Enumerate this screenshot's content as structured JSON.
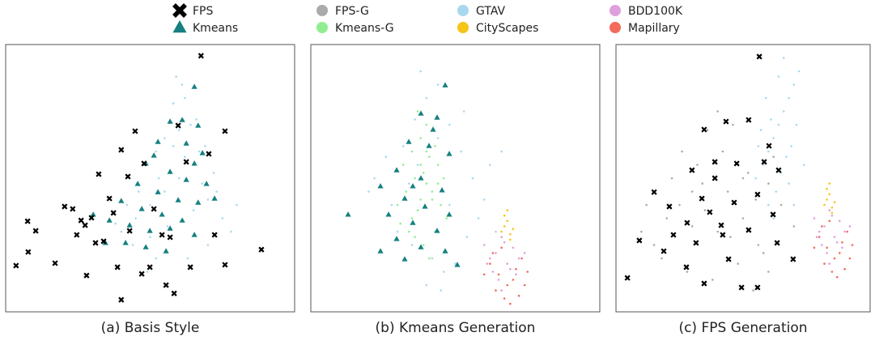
{
  "chart_data": [
    {
      "type": "scatter",
      "xlabel": "(a) Basis Style",
      "xlim": [
        0,
        100
      ],
      "ylim": [
        0,
        100
      ],
      "series": [
        {
          "name": "GTAV",
          "color": "#a8d8f0",
          "marker": "dot",
          "x": [
            40,
            45,
            50,
            55,
            60,
            65,
            70,
            48,
            52,
            58,
            62,
            68,
            72,
            75,
            44,
            50,
            56,
            63,
            70,
            78,
            46,
            53,
            60,
            66,
            58,
            61,
            64,
            55,
            57,
            67,
            42,
            38,
            73,
            80,
            52,
            49,
            62,
            59,
            69,
            65
          ],
          "values": [
            30,
            35,
            40,
            45,
            50,
            38,
            42,
            55,
            60,
            62,
            58,
            48,
            52,
            35,
            25,
            28,
            32,
            20,
            25,
            30,
            45,
            50,
            68,
            72,
            78,
            85,
            70,
            65,
            52,
            60,
            40,
            33,
            45,
            40,
            20,
            15,
            80,
            88,
            62,
            55
          ]
        },
        {
          "name": "Kmeans",
          "color": "#168080",
          "marker": "triangle",
          "x": [
            65.3,
            56.9,
            61.1,
            66.6,
            52.7,
            62.5,
            68.1,
            48.5,
            56.9,
            62.5,
            69.5,
            45.7,
            52.7,
            59.7,
            66.6,
            40,
            47.1,
            54.1,
            61.1,
            35.9,
            42.9,
            49.9,
            56.9,
            65.3,
            34.5,
            41.5,
            48.5,
            55.5,
            30.3,
            72.3,
            51.3,
            65.3
          ],
          "values": [
            84.2,
            71.2,
            71.8,
            69.7,
            63.6,
            63,
            59.4,
            55.5,
            52.4,
            49.4,
            47.9,
            47.9,
            44.8,
            41.8,
            40.9,
            41.5,
            38.5,
            36.4,
            34.2,
            34.2,
            32.4,
            30.3,
            31.2,
            28.8,
            25.8,
            25.8,
            24.2,
            22.7,
            36.4,
            42.4,
            58.5,
            55.5
          ]
        },
        {
          "name": "FPS",
          "color": "#000000",
          "marker": "cross",
          "x": [
            67.6,
            75.9,
            3.6,
            7.8,
            7.6,
            10.4,
            17.1,
            20.4,
            23.2,
            28,
            32.2,
            35.9,
            40,
            42.3,
            44.8,
            47.9,
            54.1,
            40,
            58.3,
            63.9,
            70.3,
            72.3,
            75.9,
            88.5,
            27.5,
            31.1,
            33.9,
            38.7,
            42.9,
            49.9,
            56.9,
            59.7,
            62.5,
            51.3,
            37.3,
            26.1,
            47.1,
            55.5,
            24.6,
            29.7
          ],
          "values": [
            95.8,
            67.6,
            17.3,
            22.4,
            33.9,
            30.3,
            18.2,
            39.4,
            38.5,
            13.6,
            51.5,
            42.4,
            60.6,
            50.6,
            67.6,
            55.5,
            28.8,
            4.5,
            6.9,
            16.7,
            59.1,
            28.8,
            17.6,
            23.3,
            32.4,
            25.8,
            26.4,
            16.7,
            30.3,
            16.7,
            27.9,
            69.7,
            56.1,
            38.5,
            37,
            34.2,
            14.2,
            10,
            28.8,
            35.2
          ]
        }
      ]
    },
    {
      "type": "scatter",
      "xlabel": "(b) Kmeans Generation",
      "xlim": [
        0,
        100
      ],
      "ylim": [
        0,
        100
      ],
      "series": [
        {
          "name": "GTAV",
          "color": "#a8d8f0",
          "marker": "dot",
          "x": [
            22,
            28,
            32,
            36,
            40,
            44,
            48,
            52,
            56,
            60,
            30,
            35,
            42,
            46,
            50,
            54,
            58,
            62,
            26,
            38,
            44,
            34,
            48,
            53,
            64,
            20,
            66,
            40,
            45,
            37
          ],
          "values": [
            50,
            40,
            62,
            72,
            80,
            85,
            70,
            60,
            50,
            42,
            30,
            25,
            20,
            15,
            18,
            28,
            35,
            55,
            58,
            90,
            65,
            48,
            40,
            75,
            30,
            45,
            60,
            10,
            8,
            55
          ]
        },
        {
          "name": "Kmeans-G",
          "color": "#90ee90",
          "marker": "dot",
          "x": [
            30,
            33,
            36,
            38,
            40,
            42,
            44,
            35,
            37,
            39,
            41,
            43,
            45,
            34,
            36,
            38,
            40,
            42,
            32,
            46,
            31,
            47,
            39,
            41,
            37,
            43,
            35,
            44,
            38,
            40
          ],
          "values": [
            40,
            45,
            50,
            55,
            60,
            42,
            48,
            35,
            38,
            52,
            58,
            62,
            40,
            30,
            28,
            65,
            70,
            45,
            55,
            50,
            33,
            35,
            25,
            20,
            75,
            30,
            60,
            55,
            42,
            48
          ]
        },
        {
          "name": "CityScapes",
          "color": "#f5c518",
          "marker": "dot",
          "x": [
            66,
            67,
            68,
            69,
            67,
            70,
            68,
            69
          ],
          "values": [
            30,
            32,
            34,
            29,
            36,
            31,
            38,
            27
          ]
        },
        {
          "name": "BDD100K",
          "color": "#dda0dd",
          "marker": "dot",
          "x": [
            60,
            62,
            64,
            66,
            68,
            70,
            72,
            63,
            65,
            67,
            69,
            71,
            61,
            74,
            66
          ],
          "values": [
            25,
            20,
            22,
            28,
            18,
            24,
            20,
            15,
            12,
            26,
            16,
            14,
            18,
            22,
            8
          ]
        },
        {
          "name": "Mapillary",
          "color": "#f26b5b",
          "marker": "dot",
          "x": [
            62,
            65,
            68,
            71,
            73,
            64,
            67,
            70,
            72,
            75,
            63,
            69,
            66,
            74,
            60
          ],
          "values": [
            18,
            14,
            10,
            16,
            20,
            8,
            5,
            12,
            6,
            15,
            22,
            3,
            24,
            10,
            14
          ]
        },
        {
          "name": "Kmeans",
          "color": "#168080",
          "marker": "triangle",
          "x": [
            46.5,
            43.7,
            38.1,
            33.9,
            40.9,
            47.9,
            29.7,
            38.1,
            45.4,
            32.5,
            39.5,
            47.9,
            26.9,
            35.3,
            43.7,
            29.7,
            38.1,
            46.5,
            12.9,
            32.5,
            50.7,
            24.1,
            42.3,
            35.3,
            24.1
          ],
          "values": [
            84.8,
            72.7,
            74.2,
            63.6,
            62.1,
            59.1,
            53,
            50,
            45.5,
            42.4,
            39.4,
            36.4,
            36.4,
            33.3,
            30.3,
            27.3,
            24.2,
            22.7,
            36.4,
            19.7,
            17.6,
            22.7,
            68.2,
            47,
            47
          ]
        }
      ]
    },
    {
      "type": "scatter",
      "xlabel": "(c) FPS Generation",
      "xlim": [
        0,
        100
      ],
      "ylim": [
        0,
        100
      ],
      "series": [
        {
          "name": "FPS-G",
          "color": "#aaaaaa",
          "marker": "dot",
          "x": [
            10,
            15,
            20,
            25,
            30,
            35,
            40,
            45,
            50,
            55,
            60,
            65,
            70,
            18,
            28,
            38,
            48,
            58,
            22,
            32,
            42,
            52,
            62,
            12,
            36,
            46,
            56,
            26,
            44,
            54,
            40,
            30,
            50,
            34,
            60
          ],
          "values": [
            30,
            25,
            35,
            40,
            45,
            38,
            30,
            28,
            35,
            42,
            48,
            40,
            32,
            20,
            15,
            12,
            18,
            22,
            50,
            55,
            60,
            52,
            58,
            40,
            68,
            70,
            25,
            60,
            45,
            8,
            75,
            32,
            50,
            48,
            15
          ]
        },
        {
          "name": "GTAV",
          "color": "#a8d8f0",
          "marker": "dot",
          "x": [
            55,
            58,
            60,
            62,
            64,
            66,
            68,
            70,
            72,
            60,
            63,
            65,
            67,
            69,
            57,
            61,
            66,
            71,
            74,
            59,
            64,
            68,
            62,
            70,
            56
          ],
          "values": [
            50,
            55,
            60,
            65,
            70,
            75,
            80,
            85,
            90,
            40,
            45,
            52,
            58,
            62,
            68,
            72,
            95,
            70,
            55,
            80,
            88,
            48,
            35,
            40,
            62
          ]
        },
        {
          "name": "CityScapes",
          "color": "#f5c518",
          "marker": "dot",
          "x": [
            82,
            83,
            84,
            85,
            83,
            86,
            84,
            85
          ],
          "values": [
            40,
            42,
            44,
            39,
            46,
            41,
            48,
            37
          ]
        },
        {
          "name": "BDD100K",
          "color": "#dda0dd",
          "marker": "dot",
          "x": [
            78,
            80,
            82,
            84,
            86,
            88,
            90,
            81,
            83,
            85,
            87,
            89,
            79,
            92,
            84
          ],
          "values": [
            35,
            30,
            32,
            38,
            28,
            34,
            30,
            25,
            22,
            36,
            26,
            24,
            28,
            32,
            18
          ]
        },
        {
          "name": "Mapillary",
          "color": "#f26b5b",
          "marker": "dot",
          "x": [
            80,
            83,
            86,
            89,
            91,
            82,
            85,
            88,
            90,
            93,
            81,
            87,
            84,
            92,
            78
          ],
          "values": [
            28,
            24,
            20,
            26,
            30,
            18,
            15,
            22,
            16,
            25,
            32,
            13,
            34,
            20,
            24
          ]
        },
        {
          "name": "FPS",
          "color": "#000000",
          "marker": "cross",
          "x": [
            56.4,
            4.5,
            9.2,
            15,
            21,
            29.9,
            34.7,
            38.9,
            43.3,
            52.2,
            60.2,
            64,
            55.7,
            46.5,
            36.9,
            28,
            22.6,
            31.5,
            42,
            52.2,
            61.8,
            69.7,
            55.7,
            49.4,
            34.7,
            27.7,
            18.8,
            44.3,
            63.4,
            38.9,
            33.8,
            41.4,
            47.5,
            58.3
          ],
          "values": [
            95.5,
            12.7,
            26.7,
            44.8,
            39.4,
            53,
            68.2,
            56.1,
            71.2,
            71.8,
            62.1,
            53,
            43.9,
            40.9,
            37.3,
            33.3,
            28.8,
            25.8,
            28.8,
            30.6,
            36.4,
            19.7,
            9.1,
            9.1,
            10.6,
            16.7,
            22.7,
            19.7,
            25.8,
            50,
            42.4,
            32.4,
            55.5,
            56.1
          ]
        }
      ]
    }
  ]
}
